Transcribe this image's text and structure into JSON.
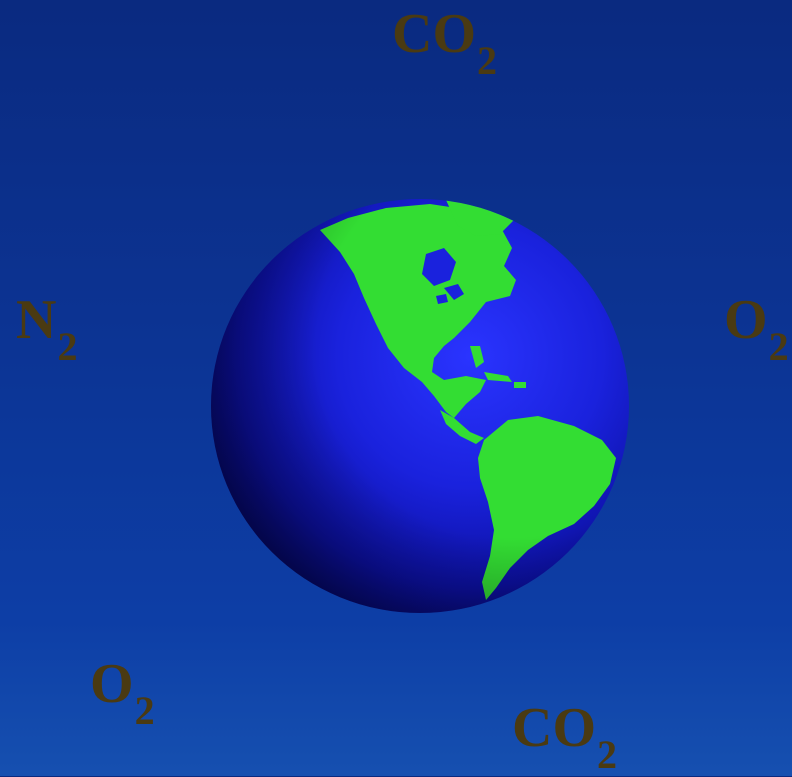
{
  "molecules": {
    "top_co2": {
      "base": "CO",
      "sub": "2"
    },
    "left_n2": {
      "base": "N",
      "sub": "2"
    },
    "right_o2": {
      "base": "O",
      "sub": "2"
    },
    "bottom_o2": {
      "base": "O",
      "sub": "2"
    },
    "bottom_co2": {
      "base": "CO",
      "sub": "2"
    }
  },
  "colors": {
    "sky_top": "#0a2a80",
    "sky_bottom": "#1650b0",
    "text": "#4a3a12",
    "ocean": "#1a1ee0",
    "land": "#33dd33"
  },
  "globe": {
    "icon": "earth-globe-americas"
  }
}
